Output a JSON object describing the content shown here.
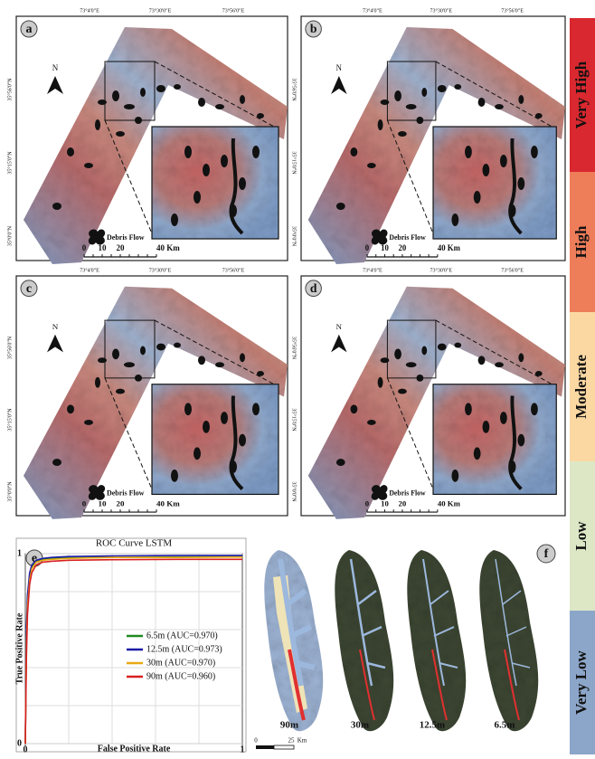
{
  "maps": {
    "panels": [
      "a",
      "b",
      "c",
      "d"
    ],
    "lon_labels": [
      "73°4'0\"E",
      "73°30'0\"E",
      "73°56'0\"E"
    ],
    "lat_labels": [
      "35°56'0\"N",
      "35°15'0\"N",
      "35°0'0\"N"
    ],
    "north": "N",
    "legend_item": "Debris Flow",
    "scale_labels": [
      "0",
      "10",
      "20",
      "40 Km"
    ]
  },
  "legend": {
    "classes": [
      {
        "name": "Very High",
        "color": "#d9282f"
      },
      {
        "name": "High",
        "color": "#ee7d5a"
      },
      {
        "name": "Moderate",
        "color": "#fbd8a2"
      },
      {
        "name": "Low",
        "color": "#dde7c6"
      },
      {
        "name": "Very Low",
        "color": "#8ca6c9"
      }
    ]
  },
  "chart_data": {
    "type": "line",
    "panel": "e",
    "title": "ROC Curve LSTM",
    "x_label": "False Positive Rate",
    "y_label": "True Positive Rate",
    "x": [
      0,
      0.005,
      0.01,
      0.02,
      0.03,
      0.05,
      0.08,
      0.12,
      0.2,
      0.4,
      0.7,
      1
    ],
    "series": [
      {
        "name": "6.5m (AUC=0.970)",
        "color": "#1e8a1e",
        "values": [
          0,
          0.55,
          0.75,
          0.88,
          0.93,
          0.96,
          0.97,
          0.975,
          0.978,
          0.98,
          0.982,
          0.985
        ]
      },
      {
        "name": "12.5m (AUC=0.973)",
        "color": "#1c1ca8",
        "values": [
          0,
          0.6,
          0.78,
          0.9,
          0.94,
          0.965,
          0.975,
          0.98,
          0.985,
          0.988,
          0.99,
          0.99
        ]
      },
      {
        "name": "30m (AUC=0.970)",
        "color": "#e8a914",
        "values": [
          0,
          0.5,
          0.72,
          0.86,
          0.92,
          0.955,
          0.965,
          0.97,
          0.975,
          0.98,
          0.98,
          0.982
        ]
      },
      {
        "name": "90m (AUC=0.960)",
        "color": "#d92020",
        "values": [
          0,
          0.45,
          0.68,
          0.84,
          0.9,
          0.94,
          0.955,
          0.96,
          0.965,
          0.968,
          0.97,
          0.97
        ]
      }
    ],
    "xlim": [
      0,
      1
    ],
    "ylim": [
      0,
      1
    ],
    "xticks": [
      0,
      1
    ],
    "yticks": [
      0,
      1
    ],
    "grid": true,
    "legend_position": "lower right"
  },
  "panel_f": {
    "label": "f",
    "resolutions": [
      "90m",
      "30m",
      "12.5m",
      "6.5m"
    ],
    "scale_labels": [
      "0",
      "25",
      "Km"
    ]
  }
}
